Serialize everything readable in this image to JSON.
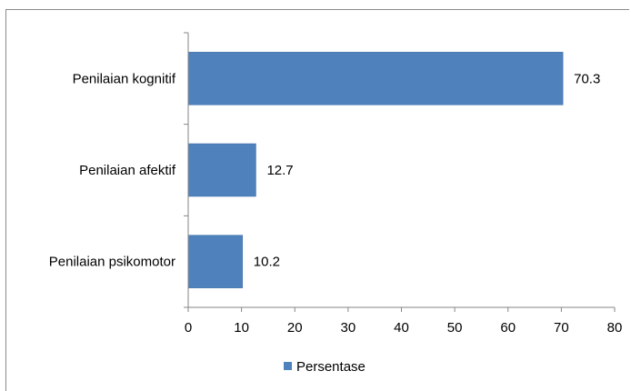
{
  "chart_data": {
    "type": "bar",
    "orientation": "horizontal",
    "categories": [
      "Penilaian kognitif",
      "Penilaian afektif",
      "Penilaian psikomotor"
    ],
    "series": [
      {
        "name": "Persentase",
        "values": [
          70.3,
          12.7,
          10.2
        ],
        "color": "#4f81bd"
      }
    ],
    "xlim": [
      0,
      80
    ],
    "xticks": [
      "0",
      "10",
      "20",
      "30",
      "40",
      "50",
      "60",
      "70",
      "80"
    ],
    "data_labels": [
      "70.3",
      "12.7",
      "10.2"
    ],
    "grid": false,
    "legend_position": "bottom"
  }
}
